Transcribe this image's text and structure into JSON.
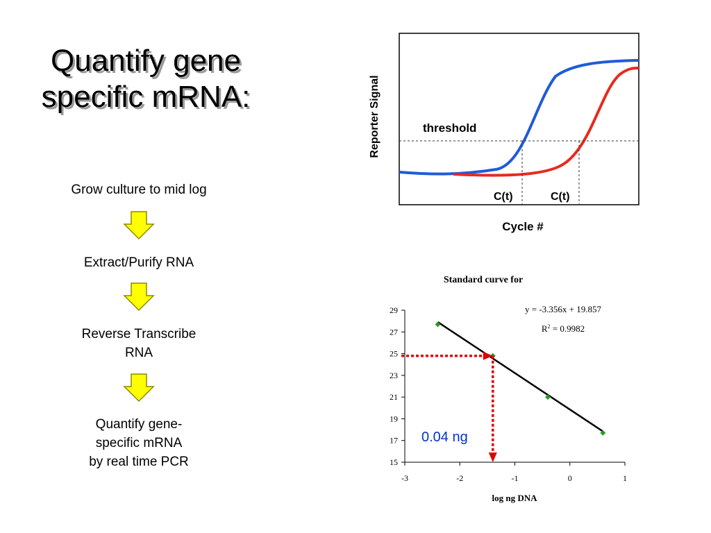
{
  "title": {
    "line1": "Quantify gene",
    "line2": "specific mRNA:"
  },
  "steps": [
    {
      "lines": [
        "Grow culture to mid log"
      ]
    },
    {
      "lines": [
        "Extract/Purify RNA"
      ]
    },
    {
      "lines": [
        "Reverse Transcribe",
        "RNA"
      ]
    },
    {
      "lines": [
        "Quantify gene-",
        "specific mRNA",
        "by real time PCR"
      ]
    }
  ],
  "colors": {
    "arrow_fill": "#ffff00",
    "arrow_stroke": "#8a8a00",
    "blue_curve": "#1f5bd8",
    "red_curve": "#e82a1f",
    "marker": "#2a9a2a",
    "annotation": "#0033cc"
  },
  "amplification_plot": {
    "ylabel": "Reporter  Signal",
    "xlabel": "Cycle #",
    "threshold_label": "threshold",
    "ct_label_1": "C(t)",
    "ct_label_2": "C(t)"
  },
  "chart_data": {
    "type": "scatter",
    "title": "Standard curve for",
    "xlabel": "log ng DNA",
    "ylabel": "",
    "xlim": [
      -3,
      1
    ],
    "ylim": [
      15,
      29
    ],
    "x_ticks": [
      "-3",
      "-2",
      "-1",
      "0",
      "1"
    ],
    "y_ticks": [
      "15",
      "17",
      "19",
      "21",
      "23",
      "25",
      "27",
      "29"
    ],
    "points": [
      {
        "x": -2.4,
        "y": 27.7
      },
      {
        "x": -1.4,
        "y": 24.8
      },
      {
        "x": -0.4,
        "y": 21.0
      },
      {
        "x": 0.6,
        "y": 17.7
      }
    ],
    "fit": {
      "slope": -3.356,
      "intercept": 19.857,
      "equation": "y = -3.356x + 19.857",
      "r2_label": "R",
      "r2_sup": "2",
      "r2_value": " = 0.9982"
    },
    "readout": {
      "x": -1.4,
      "y": 24.8,
      "label": "0.04 ng"
    }
  }
}
